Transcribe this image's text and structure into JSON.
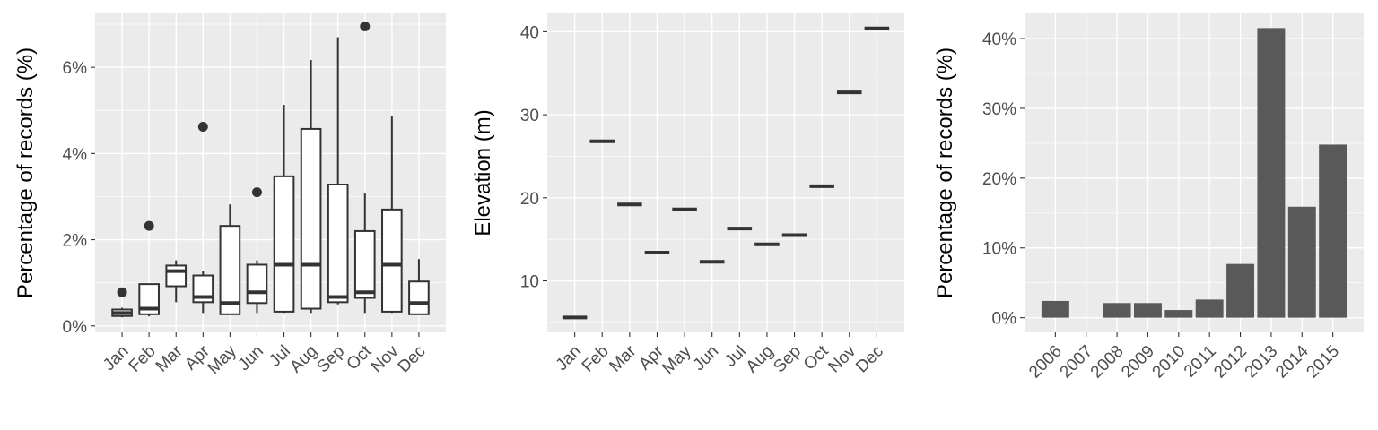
{
  "chart_data": [
    {
      "type": "box",
      "ylabel": "Percentage of records (%)",
      "categories": [
        "Jan",
        "Feb",
        "Mar",
        "Apr",
        "May",
        "Jun",
        "Jul",
        "Aug",
        "Sep",
        "Oct",
        "Nov",
        "Dec"
      ],
      "yticks": [
        0,
        2,
        4,
        6
      ],
      "yticklabels": [
        "0%",
        "2%",
        "4%",
        "6%"
      ],
      "ylim": [
        -0.15,
        7.25
      ],
      "boxes": [
        {
          "min": 0.2,
          "q1": 0.23,
          "median": 0.3,
          "q3": 0.38,
          "max": 0.42,
          "outliers": [
            0.78
          ]
        },
        {
          "min": 0.22,
          "q1": 0.27,
          "median": 0.4,
          "q3": 0.97,
          "max": 0.97,
          "outliers": [
            2.32
          ]
        },
        {
          "min": 0.55,
          "q1": 0.92,
          "median": 1.27,
          "q3": 1.4,
          "max": 1.52,
          "outliers": []
        },
        {
          "min": 0.3,
          "q1": 0.55,
          "median": 0.67,
          "q3": 1.17,
          "max": 1.27,
          "outliers": [
            4.62
          ]
        },
        {
          "min": 0.27,
          "q1": 0.27,
          "median": 0.53,
          "q3": 2.32,
          "max": 2.82,
          "outliers": []
        },
        {
          "min": 0.3,
          "q1": 0.53,
          "median": 0.78,
          "q3": 1.42,
          "max": 1.52,
          "outliers": [
            3.1
          ]
        },
        {
          "min": 0.3,
          "q1": 0.33,
          "median": 1.42,
          "q3": 3.47,
          "max": 5.13,
          "outliers": []
        },
        {
          "min": 0.3,
          "q1": 0.4,
          "median": 1.42,
          "q3": 4.57,
          "max": 6.17,
          "outliers": []
        },
        {
          "min": 0.5,
          "q1": 0.55,
          "median": 0.67,
          "q3": 3.28,
          "max": 6.7,
          "outliers": []
        },
        {
          "min": 0.3,
          "q1": 0.65,
          "median": 0.78,
          "q3": 2.2,
          "max": 3.07,
          "outliers": [
            6.95
          ]
        },
        {
          "min": 0.3,
          "q1": 0.33,
          "median": 1.42,
          "q3": 2.7,
          "max": 4.88,
          "outliers": []
        },
        {
          "min": 0.27,
          "q1": 0.27,
          "median": 0.53,
          "q3": 1.03,
          "max": 1.55,
          "outliers": []
        }
      ]
    },
    {
      "type": "crossbar",
      "ylabel": "Elevation (m)",
      "categories": [
        "Jan",
        "Feb",
        "Mar",
        "Apr",
        "May",
        "Jun",
        "Jul",
        "Aug",
        "Sep",
        "Oct",
        "Nov",
        "Dec"
      ],
      "yticks": [
        10,
        20,
        30,
        40
      ],
      "yticklabels": [
        "10",
        "20",
        "30",
        "40"
      ],
      "ylim": [
        3.8,
        42.2
      ],
      "values": [
        5.6,
        26.8,
        19.2,
        13.4,
        18.6,
        12.3,
        16.3,
        14.4,
        15.5,
        21.4,
        32.7,
        40.4
      ]
    },
    {
      "type": "bar",
      "ylabel": "Percentage of records (%)",
      "categories": [
        "2006",
        "2007",
        "2008",
        "2009",
        "2010",
        "2011",
        "2012",
        "2013",
        "2014",
        "2015"
      ],
      "yticks": [
        0,
        10,
        20,
        30,
        40
      ],
      "yticklabels": [
        "0%",
        "10%",
        "20%",
        "30%",
        "40%"
      ],
      "ylim": [
        -2.1,
        43.6
      ],
      "values": [
        2.4,
        0,
        2.1,
        2.1,
        1.1,
        2.6,
        7.7,
        41.5,
        15.9,
        24.8
      ]
    }
  ],
  "colors": {
    "panel": "#ebebeb",
    "grid": "#ffffff",
    "mark": "#333333",
    "bar": "#595959",
    "box_fill": "#ffffff",
    "tick_text": "#4d4d4d",
    "title_text": "#000000"
  }
}
